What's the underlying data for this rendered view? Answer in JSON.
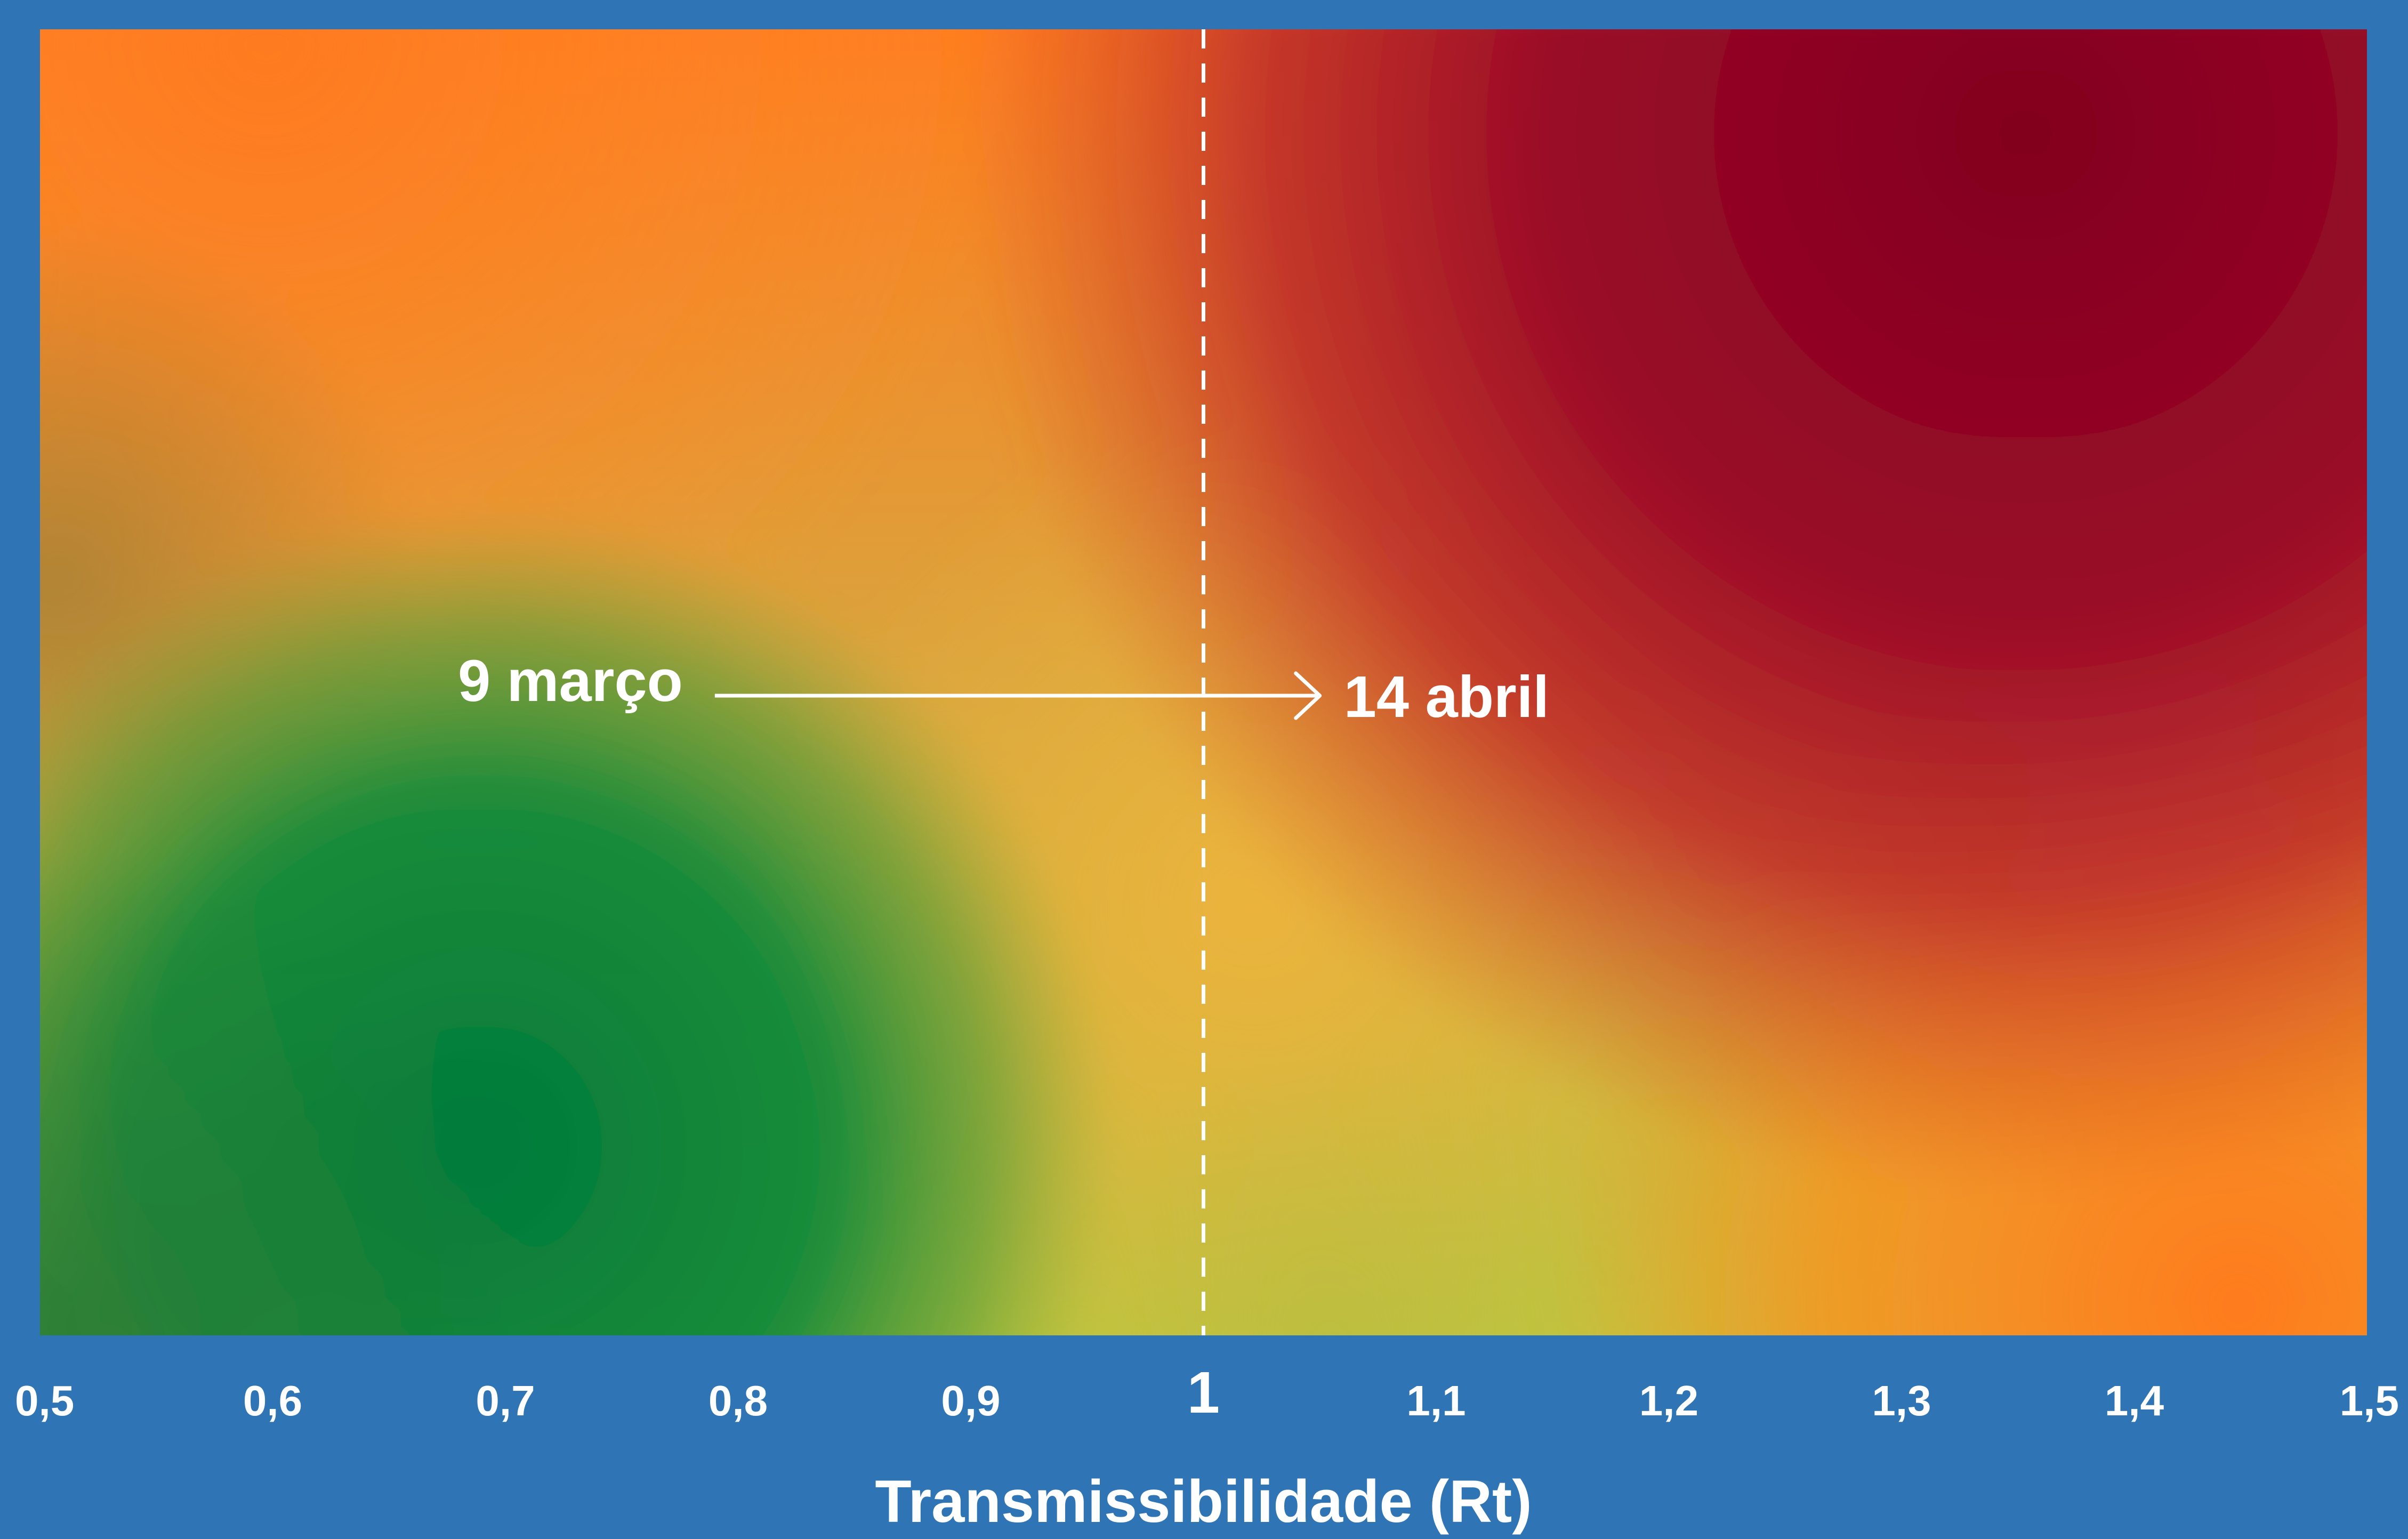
{
  "chart_data": {
    "type": "heatmap",
    "title": "",
    "xlabel": "Transmissibilidade (Rt)",
    "ylabel": "",
    "xlim": [
      0.5,
      1.5
    ],
    "x_ticks": [
      {
        "value": 0.5,
        "label": "0,5",
        "emphasis": false
      },
      {
        "value": 0.6,
        "label": "0,6",
        "emphasis": false
      },
      {
        "value": 0.7,
        "label": "0,7",
        "emphasis": false
      },
      {
        "value": 0.8,
        "label": "0,8",
        "emphasis": false
      },
      {
        "value": 0.9,
        "label": "0,9",
        "emphasis": false
      },
      {
        "value": 1.0,
        "label": "1",
        "emphasis": true
      },
      {
        "value": 1.1,
        "label": "1,1",
        "emphasis": false
      },
      {
        "value": 1.2,
        "label": "1,2",
        "emphasis": false
      },
      {
        "value": 1.3,
        "label": "1,3",
        "emphasis": false
      },
      {
        "value": 1.4,
        "label": "1,4",
        "emphasis": false
      },
      {
        "value": 1.5,
        "label": "1,5",
        "emphasis": false
      }
    ],
    "reference_line": {
      "x": 1.0,
      "style": "dashed",
      "color": "#ffffff"
    },
    "grid": false,
    "legend": "none",
    "annotations": [
      {
        "label": "9 março",
        "position": "left of arrow start",
        "x_approx": 0.79
      },
      {
        "label": "14 abril",
        "position": "right of arrow end",
        "x_approx": 1.07
      }
    ],
    "arrow": {
      "from_x": 0.79,
      "to_x": 1.05,
      "color": "#ffffff"
    },
    "colors": {
      "background": "#2f75b5",
      "green": "#007a3a",
      "yellow": "#d4c23e",
      "orange": "#ff8a1e",
      "red": "#c0302a",
      "dark_red": "#85001e",
      "text": "#ffffff"
    }
  }
}
